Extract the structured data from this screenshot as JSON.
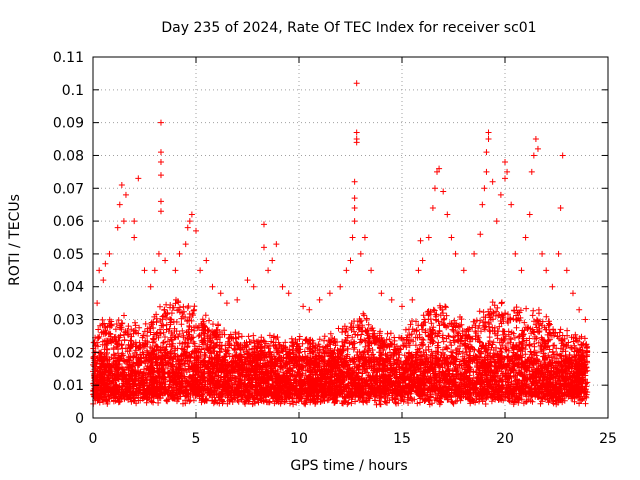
{
  "chart_data": {
    "type": "scatter",
    "title": "Day 235 of 2024, Rate Of TEC Index for receiver sc01",
    "xlabel": "GPS time / hours",
    "ylabel": "ROTI / TECUs",
    "xlim": [
      0,
      25
    ],
    "ylim": [
      0,
      0.11
    ],
    "xticks": [
      0,
      5,
      10,
      15,
      20,
      25
    ],
    "xtick_labels": [
      "0",
      "5",
      "10",
      "15",
      "20",
      "25"
    ],
    "yticks": [
      0,
      0.01,
      0.02,
      0.03,
      0.04,
      0.05,
      0.06,
      0.07,
      0.08,
      0.09,
      0.1,
      0.11
    ],
    "ytick_labels": [
      "0",
      "0.01",
      "0.02",
      "0.03",
      "0.04",
      "0.05",
      "0.06",
      "0.07",
      "0.08",
      "0.09",
      "0.1",
      "0.11"
    ],
    "grid": true,
    "marker": "plus",
    "color": "#ff0000",
    "series": [
      {
        "points": [
          [
            0.2,
            0.035
          ],
          [
            0.3,
            0.045
          ],
          [
            0.5,
            0.042
          ],
          [
            0.6,
            0.047
          ],
          [
            0.8,
            0.05
          ],
          [
            1.2,
            0.058
          ],
          [
            1.3,
            0.065
          ],
          [
            1.4,
            0.071
          ],
          [
            1.5,
            0.06
          ],
          [
            1.6,
            0.068
          ],
          [
            2.0,
            0.06
          ],
          [
            2.0,
            0.055
          ],
          [
            2.2,
            0.073
          ],
          [
            2.5,
            0.045
          ],
          [
            2.8,
            0.04
          ],
          [
            3.0,
            0.045
          ],
          [
            3.2,
            0.05
          ],
          [
            3.3,
            0.063
          ],
          [
            3.3,
            0.066
          ],
          [
            3.3,
            0.074
          ],
          [
            3.3,
            0.078
          ],
          [
            3.3,
            0.081
          ],
          [
            3.3,
            0.09
          ],
          [
            3.5,
            0.048
          ],
          [
            4.0,
            0.045
          ],
          [
            4.2,
            0.05
          ],
          [
            4.5,
            0.053
          ],
          [
            4.6,
            0.058
          ],
          [
            4.7,
            0.06
          ],
          [
            4.8,
            0.062
          ],
          [
            5.0,
            0.057
          ],
          [
            5.2,
            0.045
          ],
          [
            5.5,
            0.048
          ],
          [
            5.8,
            0.04
          ],
          [
            6.2,
            0.038
          ],
          [
            6.5,
            0.035
          ],
          [
            7.0,
            0.036
          ],
          [
            7.5,
            0.042
          ],
          [
            7.8,
            0.04
          ],
          [
            8.3,
            0.059
          ],
          [
            8.3,
            0.052
          ],
          [
            8.5,
            0.045
          ],
          [
            8.7,
            0.048
          ],
          [
            8.9,
            0.053
          ],
          [
            9.2,
            0.04
          ],
          [
            9.5,
            0.038
          ],
          [
            10.2,
            0.034
          ],
          [
            10.5,
            0.033
          ],
          [
            11.0,
            0.036
          ],
          [
            11.5,
            0.038
          ],
          [
            12.0,
            0.04
          ],
          [
            12.3,
            0.045
          ],
          [
            12.5,
            0.048
          ],
          [
            12.6,
            0.055
          ],
          [
            12.7,
            0.06
          ],
          [
            12.7,
            0.064
          ],
          [
            12.7,
            0.067
          ],
          [
            12.7,
            0.072
          ],
          [
            12.8,
            0.084
          ],
          [
            12.8,
            0.085
          ],
          [
            12.8,
            0.087
          ],
          [
            12.8,
            0.102
          ],
          [
            13.0,
            0.05
          ],
          [
            13.2,
            0.055
          ],
          [
            13.5,
            0.045
          ],
          [
            14.0,
            0.038
          ],
          [
            14.5,
            0.036
          ],
          [
            15.0,
            0.034
          ],
          [
            15.5,
            0.036
          ],
          [
            15.8,
            0.045
          ],
          [
            15.9,
            0.054
          ],
          [
            16.0,
            0.048
          ],
          [
            16.3,
            0.055
          ],
          [
            16.5,
            0.064
          ],
          [
            16.6,
            0.07
          ],
          [
            16.7,
            0.075
          ],
          [
            16.8,
            0.076
          ],
          [
            17.0,
            0.069
          ],
          [
            17.2,
            0.062
          ],
          [
            17.4,
            0.055
          ],
          [
            17.6,
            0.05
          ],
          [
            18.0,
            0.045
          ],
          [
            18.5,
            0.05
          ],
          [
            18.8,
            0.056
          ],
          [
            18.9,
            0.065
          ],
          [
            19.0,
            0.07
          ],
          [
            19.1,
            0.075
          ],
          [
            19.1,
            0.081
          ],
          [
            19.2,
            0.085
          ],
          [
            19.2,
            0.087
          ],
          [
            19.4,
            0.072
          ],
          [
            19.6,
            0.06
          ],
          [
            19.8,
            0.068
          ],
          [
            20.0,
            0.073
          ],
          [
            20.0,
            0.078
          ],
          [
            20.1,
            0.075
          ],
          [
            20.3,
            0.065
          ],
          [
            20.5,
            0.05
          ],
          [
            20.8,
            0.045
          ],
          [
            21.0,
            0.055
          ],
          [
            21.2,
            0.062
          ],
          [
            21.3,
            0.075
          ],
          [
            21.4,
            0.08
          ],
          [
            21.5,
            0.085
          ],
          [
            21.6,
            0.082
          ],
          [
            21.8,
            0.05
          ],
          [
            22.0,
            0.045
          ],
          [
            22.3,
            0.04
          ],
          [
            22.6,
            0.05
          ],
          [
            22.7,
            0.064
          ],
          [
            22.8,
            0.08
          ],
          [
            23.0,
            0.045
          ],
          [
            23.3,
            0.038
          ],
          [
            23.6,
            0.033
          ],
          [
            23.9,
            0.03
          ]
        ]
      }
    ]
  }
}
